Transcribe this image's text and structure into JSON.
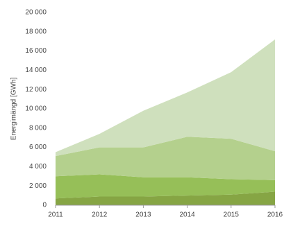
{
  "chart_data": {
    "type": "stacked-area",
    "y_label": "Energimängd [GWh]",
    "categories": [
      "2011",
      "2012",
      "2013",
      "2014",
      "2015",
      "2016"
    ],
    "series": [
      {
        "color": "#86a544",
        "values": [
          700,
          900,
          900,
          1000,
          1100,
          1400
        ]
      },
      {
        "color": "#96bf58",
        "values": [
          2300,
          2300,
          2000,
          1900,
          1600,
          1200
        ]
      },
      {
        "color": "#b4d08d",
        "values": [
          2100,
          2800,
          3100,
          4200,
          4200,
          3000
        ]
      },
      {
        "color": "#cfe0bd",
        "values": [
          400,
          1400,
          3800,
          4600,
          6900,
          11600
        ]
      }
    ],
    "ylim": [
      0,
      20000
    ],
    "yticks": [
      0,
      {
        "value": 2000,
        "label": "2 000"
      },
      {
        "value": 4000,
        "label": "4 000"
      },
      {
        "value": 6000,
        "label": "6 000"
      },
      {
        "value": 8000,
        "label": "8 000"
      },
      {
        "value": 10000,
        "label": "10 000"
      },
      {
        "value": 12000,
        "label": "12 000"
      },
      {
        "value": 14000,
        "label": "14 000"
      },
      {
        "value": 16000,
        "label": "16 000"
      },
      {
        "value": 18000,
        "label": "18 000"
      },
      {
        "value": 20000,
        "label": "20 000"
      }
    ]
  }
}
